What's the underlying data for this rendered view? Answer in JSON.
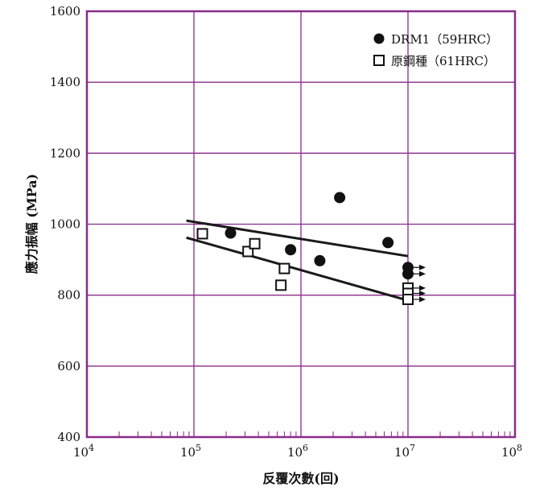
{
  "chart_data": {
    "type": "scatter",
    "x_scale": "log",
    "xlabel": "反覆次數(回)",
    "ylabel": "應力振幅 (MPa)",
    "xlim": [
      10000,
      100000000
    ],
    "ylim": [
      400,
      1600
    ],
    "x_ticks": [
      {
        "value": 10000,
        "base": "10",
        "exp": "4"
      },
      {
        "value": 100000,
        "base": "10",
        "exp": "5"
      },
      {
        "value": 1000000,
        "base": "10",
        "exp": "6"
      },
      {
        "value": 10000000,
        "base": "10",
        "exp": "7"
      },
      {
        "value": 100000000,
        "base": "10",
        "exp": "8"
      }
    ],
    "y_ticks": [
      400,
      600,
      800,
      1000,
      1200,
      1400,
      1600
    ],
    "grid": true,
    "legend_position": "top-right",
    "grid_color": "#8a2a8a",
    "series": [
      {
        "name": "DRM1（59HRC）",
        "marker": "filled-circle",
        "color": "#111111",
        "points": [
          {
            "x": 220000,
            "y": 975
          },
          {
            "x": 800000,
            "y": 928
          },
          {
            "x": 1500000,
            "y": 897
          },
          {
            "x": 2300000,
            "y": 1075
          },
          {
            "x": 6500000,
            "y": 948
          },
          {
            "x": 10000000,
            "y": 878,
            "runout": true
          },
          {
            "x": 10000000,
            "y": 860,
            "runout": true
          }
        ],
        "fit_line": [
          {
            "x": 85000,
            "y": 1010
          },
          {
            "x": 10000000,
            "y": 910
          }
        ]
      },
      {
        "name": "原鋼種（61HRC）",
        "marker": "open-square",
        "color": "#111111",
        "points": [
          {
            "x": 120000,
            "y": 973
          },
          {
            "x": 320000,
            "y": 923
          },
          {
            "x": 370000,
            "y": 945
          },
          {
            "x": 650000,
            "y": 828
          },
          {
            "x": 700000,
            "y": 875
          },
          {
            "x": 10000000,
            "y": 820,
            "runout": true
          },
          {
            "x": 10000000,
            "y": 805,
            "runout": true
          },
          {
            "x": 10000000,
            "y": 788,
            "runout": true
          }
        ],
        "fit_line": [
          {
            "x": 85000,
            "y": 962
          },
          {
            "x": 10000000,
            "y": 785
          }
        ]
      }
    ]
  }
}
